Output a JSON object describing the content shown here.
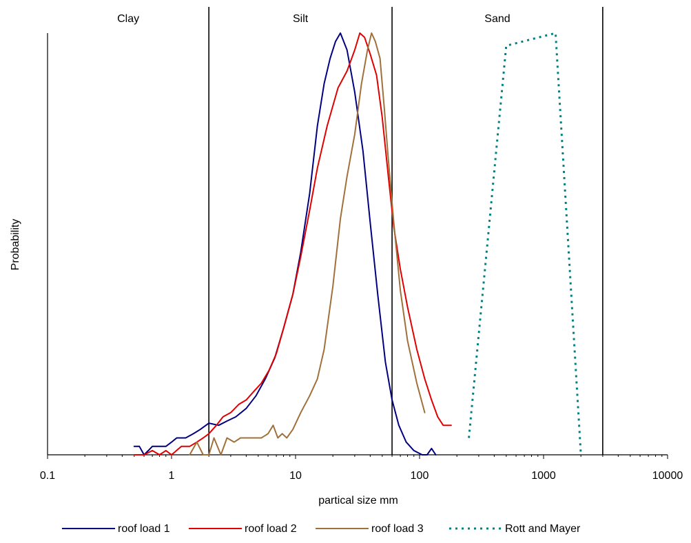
{
  "chart_data": {
    "type": "line",
    "title": "",
    "xlabel": "partical size mm",
    "ylabel": "Probability",
    "xscale": "log",
    "xlim": [
      0.1,
      10000
    ],
    "ylim": [
      0,
      1
    ],
    "x_tick_labels": [
      {
        "value": 0.1,
        "label": "0.1"
      },
      {
        "value": 1,
        "label": "1"
      },
      {
        "value": 10,
        "label": "10"
      },
      {
        "value": 100,
        "label": "100"
      },
      {
        "value": 1000,
        "label": "1000"
      },
      {
        "value": 10000,
        "label": "10000"
      }
    ],
    "y_ticks_shown": false,
    "grid": false,
    "legend_position": "bottom",
    "zones": [
      {
        "label": "Clay",
        "from": 0.1,
        "to": 2
      },
      {
        "label": "Silt",
        "from": 2,
        "to": 60
      },
      {
        "label": "Sand",
        "from": 60,
        "to": 3000
      }
    ],
    "zone_boundaries": [
      2,
      60,
      3000
    ],
    "series": [
      {
        "name": "roof load 1",
        "color": "#000080",
        "dash": "solid",
        "x": [
          0.5,
          0.55,
          0.6,
          0.65,
          0.7,
          0.75,
          0.8,
          0.9,
          1.0,
          1.1,
          1.3,
          1.5,
          1.7,
          2.0,
          2.4,
          2.8,
          3.3,
          4.0,
          4.8,
          5.7,
          6.8,
          8.0,
          9.5,
          11,
          13,
          15,
          17,
          19,
          21,
          23,
          26,
          30,
          35,
          40,
          46,
          53,
          60,
          68,
          78,
          90,
          105,
          115,
          125,
          135
        ],
        "y": [
          0.02,
          0.02,
          0.0,
          0.01,
          0.02,
          0.02,
          0.02,
          0.02,
          0.03,
          0.04,
          0.04,
          0.05,
          0.06,
          0.075,
          0.07,
          0.08,
          0.09,
          0.11,
          0.14,
          0.18,
          0.23,
          0.3,
          0.38,
          0.48,
          0.62,
          0.78,
          0.88,
          0.94,
          0.98,
          1.0,
          0.96,
          0.86,
          0.72,
          0.55,
          0.38,
          0.22,
          0.13,
          0.07,
          0.03,
          0.01,
          0.0,
          0.0,
          0.015,
          0.0
        ]
      },
      {
        "name": "roof load 2",
        "color": "#E00000",
        "dash": "solid",
        "x": [
          0.5,
          0.6,
          0.7,
          0.8,
          0.9,
          1.0,
          1.2,
          1.4,
          1.6,
          1.8,
          2.0,
          2.3,
          2.6,
          3.0,
          3.5,
          4.0,
          4.6,
          5.3,
          6.1,
          7.0,
          8.0,
          9.5,
          11,
          13,
          15,
          18,
          22,
          26,
          30,
          33,
          36,
          40,
          45,
          50,
          56,
          62,
          70,
          80,
          95,
          110,
          125,
          140,
          155,
          170,
          180
        ],
        "y": [
          0.0,
          0.0,
          0.01,
          0.0,
          0.01,
          0.0,
          0.02,
          0.02,
          0.03,
          0.04,
          0.05,
          0.07,
          0.09,
          0.1,
          0.12,
          0.13,
          0.15,
          0.17,
          0.2,
          0.24,
          0.3,
          0.38,
          0.47,
          0.58,
          0.68,
          0.78,
          0.87,
          0.91,
          0.96,
          1.0,
          0.99,
          0.95,
          0.9,
          0.8,
          0.66,
          0.54,
          0.44,
          0.35,
          0.25,
          0.18,
          0.13,
          0.09,
          0.07,
          0.07,
          0.07
        ]
      },
      {
        "name": "roof load 3",
        "color": "#A0703A",
        "dash": "solid",
        "x": [
          1.4,
          1.6,
          1.8,
          2.0,
          2.2,
          2.5,
          2.8,
          3.2,
          3.6,
          4.0,
          4.6,
          5.3,
          6.0,
          6.6,
          7.2,
          7.8,
          8.5,
          9.5,
          11,
          13,
          15,
          17,
          20,
          23,
          26,
          30,
          34,
          38,
          41,
          44,
          48,
          52,
          56,
          62,
          70,
          80,
          95,
          110
        ],
        "y": [
          0.0,
          0.03,
          0.0,
          0.0,
          0.04,
          0.0,
          0.04,
          0.03,
          0.04,
          0.04,
          0.04,
          0.04,
          0.05,
          0.07,
          0.04,
          0.05,
          0.04,
          0.06,
          0.1,
          0.14,
          0.18,
          0.25,
          0.4,
          0.56,
          0.66,
          0.76,
          0.88,
          0.96,
          1.0,
          0.98,
          0.94,
          0.82,
          0.7,
          0.55,
          0.39,
          0.27,
          0.17,
          0.1
        ]
      },
      {
        "name": "Rott and Mayer",
        "color": "#008080",
        "dash": "dotted",
        "x": [
          250,
          500,
          1250,
          2000
        ],
        "y": [
          0.04,
          0.97,
          1.0,
          0.0
        ]
      }
    ]
  }
}
